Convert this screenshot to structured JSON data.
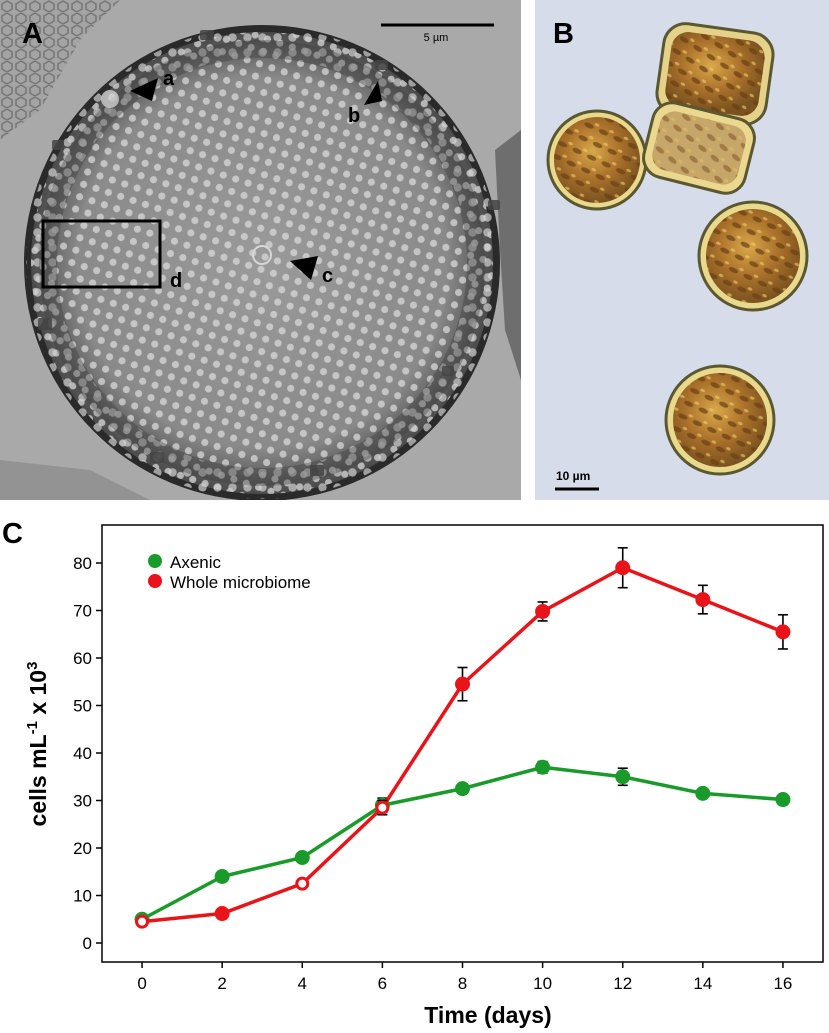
{
  "figure": {
    "panel_a": {
      "label": "A",
      "scale_bar": "5 µm",
      "annotations": [
        "a",
        "b",
        "c",
        "d"
      ]
    },
    "panel_b": {
      "label": "B",
      "scale_bar": "10 µm"
    },
    "panel_c": {
      "label": "C"
    }
  },
  "colors": {
    "axenic": "#1a9a2a",
    "whole_microbiome": "#e8141a",
    "tem_background": "#a6a6a6",
    "tem_frustule": "#8c8c8c",
    "lm_background": "#d7dde9",
    "lm_cell": "#b07a2c"
  },
  "icons": {
    "arrowhead": "black-triangle-arrowhead-icon",
    "legend_marker": "filled-circle-icon",
    "open_marker": "open-circle-icon"
  },
  "chart_data": {
    "type": "line",
    "xlabel": "Time (days)",
    "ylabel_main": "cells mL",
    "ylabel_sup1": "-1",
    "ylabel_mid": " x 10",
    "ylabel_sup2": "3",
    "xlim": [
      -1,
      17
    ],
    "ylim": [
      -4,
      88
    ],
    "xticks": [
      0,
      2,
      4,
      6,
      8,
      10,
      12,
      14,
      16
    ],
    "yticks": [
      0,
      10,
      20,
      30,
      40,
      50,
      60,
      70,
      80
    ],
    "legend_position": "top-left",
    "grid": false,
    "x": [
      0,
      2,
      4,
      6,
      8,
      10,
      12,
      14,
      16
    ],
    "series": [
      {
        "name": "Axenic",
        "key": "axenic",
        "values": [
          5,
          14,
          18,
          29,
          32.5,
          37,
          35,
          31.5,
          30.2
        ],
        "errors": [
          0.5,
          0.5,
          0.5,
          1.5,
          0.5,
          1.2,
          1.8,
          0.5,
          0.5
        ],
        "hollow": [
          false,
          false,
          false,
          false,
          false,
          false,
          false,
          false,
          false
        ]
      },
      {
        "name": "Whole microbiome",
        "key": "whole_microbiome",
        "values": [
          4.5,
          6.2,
          12.5,
          28.5,
          54.5,
          69.8,
          79,
          72.3,
          65.5
        ],
        "errors": [
          0.3,
          0.5,
          0.5,
          1.5,
          3.5,
          2,
          4.2,
          3,
          3.6
        ],
        "hollow": [
          true,
          false,
          true,
          true,
          false,
          false,
          false,
          false,
          false
        ]
      }
    ]
  }
}
